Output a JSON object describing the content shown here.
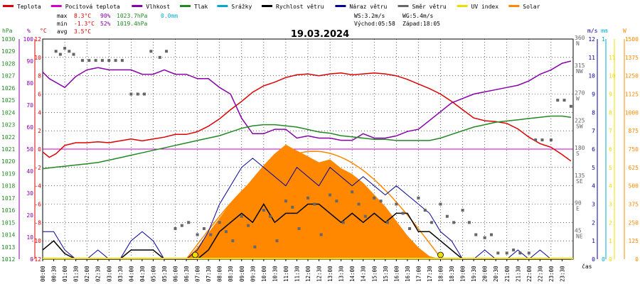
{
  "legend": [
    {
      "label": "Teplota",
      "color": "#dd0000"
    },
    {
      "label": "Pocitová teplota",
      "color": "#cc00cc"
    },
    {
      "label": "Vlhkost",
      "color": "#8800aa"
    },
    {
      "label": "Tlak",
      "color": "#228822"
    },
    {
      "label": "Srážky",
      "color": "#00aacc"
    },
    {
      "label": "Rychlost větru",
      "color": "#000000"
    },
    {
      "label": "Náraz větru",
      "color": "#000099"
    },
    {
      "label": "Směr větru",
      "color": "#666666"
    },
    {
      "label": "UV index",
      "color": "#eedd00"
    },
    {
      "label": "Solar",
      "color": "#ff8800"
    }
  ],
  "stats": {
    "max_label": "max",
    "max_temp": "8.3°C",
    "max_hum": "90%",
    "max_press": "1023.7hPa",
    "max_rain": "0.0mm",
    "min_label": "min",
    "min_temp": "-1.3°C",
    "min_hum": "52%",
    "min_press": "1019.4hPa",
    "avg_label": "avg",
    "avg_temp": "3.5°C"
  },
  "wind_info": {
    "ws": "WS:3.2m/s",
    "wg": "WG:5.4m/s",
    "sunrise": "Východ:05:58",
    "sunset": "Západ:18:05"
  },
  "colors": {
    "temp": "#dd0000",
    "feels": "#cc00cc",
    "hum": "#8800aa",
    "press": "#228822",
    "rain": "#00aacc",
    "wind": "#000000",
    "gust": "#000099",
    "dir": "#666666",
    "uv": "#eedd00",
    "solar": "#ff8800",
    "frame": "#000000",
    "grid": "#000000",
    "zero": "#cc00cc"
  },
  "chart_data": {
    "type": "line",
    "title": "19.03.2024",
    "x_unit_label": "čas",
    "x_ticks": [
      "00:00",
      "00:30",
      "01:00",
      "01:30",
      "02:00",
      "02:30",
      "03:00",
      "03:30",
      "04:00",
      "04:30",
      "05:00",
      "05:30",
      "06:00",
      "06:30",
      "07:00",
      "07:30",
      "08:00",
      "08:30",
      "09:00",
      "09:30",
      "10:00",
      "10:30",
      "11:00",
      "11:30",
      "12:00",
      "12:30",
      "13:00",
      "13:30",
      "14:00",
      "14:30",
      "15:00",
      "15:30",
      "16:00",
      "16:30",
      "17:00",
      "17:30",
      "18:00",
      "18:30",
      "19:00",
      "19:30",
      "20:00",
      "20:30",
      "21:00",
      "21:30",
      "22:00",
      "22:30",
      "23:00",
      "23:30"
    ],
    "axes": {
      "press": {
        "unit": "hPa",
        "ylim": [
          1012,
          1030
        ],
        "ticks": [
          "1012",
          "1013",
          "1014",
          "1015",
          "1016",
          "1017",
          "1018",
          "1019",
          "1020",
          "1021",
          "1022",
          "1023",
          "1024",
          "1025",
          "1026",
          "1027",
          "1028",
          "1029",
          "1030"
        ]
      },
      "hum": {
        "unit": "%",
        "ylim": [
          0,
          100
        ],
        "ticks": [
          "0",
          "10",
          "20",
          "30",
          "40",
          "50",
          "60",
          "70",
          "80",
          "90",
          "100"
        ]
      },
      "temp": {
        "unit": "°C",
        "ylim": [
          -12,
          12
        ],
        "ticks": [
          "12",
          "10",
          "8",
          "6",
          "4",
          "2",
          "0",
          "-2",
          "-4",
          "-6",
          "-8",
          "-10",
          "-12"
        ]
      },
      "dir": {
        "unit": "",
        "ylim": [
          0,
          360
        ],
        "ticks": [
          {
            "v": 360,
            "deg": "360",
            "dir": "N"
          },
          {
            "v": 315,
            "deg": "315",
            "dir": "NW"
          },
          {
            "v": 270,
            "deg": "270",
            "dir": "W"
          },
          {
            "v": 225,
            "deg": "225",
            "dir": "SW"
          },
          {
            "v": 180,
            "deg": "180",
            "dir": "S"
          },
          {
            "v": 135,
            "deg": "135",
            "dir": "SE"
          },
          {
            "v": 90,
            "deg": "90",
            "dir": "E"
          },
          {
            "v": 45,
            "deg": "45",
            "dir": "NE"
          }
        ]
      },
      "wind": {
        "unit": "m/s",
        "ylim": [
          0,
          12
        ],
        "ticks": [
          "0",
          "1",
          "2",
          "3",
          "4",
          "5",
          "6",
          "7",
          "8",
          "9",
          "10",
          "11",
          "12"
        ]
      },
      "rain": {
        "unit": "mm",
        "ylim": [
          0,
          1
        ],
        "ticks": [
          "0",
          "1"
        ]
      },
      "uv": {
        "unit": "",
        "ylim": [
          0,
          12
        ],
        "ticks": [
          "0",
          "1",
          "2",
          "3",
          "4",
          "5",
          "6",
          "7",
          "8",
          "9",
          "10",
          "11"
        ]
      },
      "solar": {
        "unit": "W",
        "ylim": [
          0,
          1500
        ],
        "ticks": [
          "0",
          "125",
          "250",
          "375",
          "500",
          "625",
          "750",
          "875",
          "1000",
          "1125",
          "1250",
          "1375",
          "1500"
        ]
      }
    },
    "series": [
      {
        "name": "Teplota",
        "axis": "temp",
        "key": "temp",
        "x": [
          0,
          0.3,
          0.6,
          1,
          1.5,
          2,
          2.5,
          3,
          3.5,
          4,
          4.5,
          5,
          5.5,
          6,
          6.5,
          7,
          7.5,
          8,
          8.5,
          9,
          9.5,
          10,
          10.5,
          11,
          11.5,
          12,
          12.5,
          13,
          13.5,
          14,
          14.5,
          15,
          15.5,
          16,
          16.5,
          17,
          17.5,
          18,
          18.5,
          19,
          19.5,
          20,
          20.5,
          21,
          21.5,
          22,
          22.5,
          23,
          23.5,
          23.9
        ],
        "y": [
          -0.3,
          -0.9,
          -0.5,
          0.4,
          0.7,
          0.7,
          0.8,
          0.7,
          0.9,
          1.1,
          0.9,
          1.1,
          1.3,
          1.6,
          1.6,
          1.9,
          2.5,
          3.3,
          4.3,
          5.2,
          6.2,
          6.9,
          7.3,
          7.8,
          8.1,
          8.2,
          8.0,
          8.2,
          8.3,
          8.1,
          8.2,
          8.3,
          8.2,
          8.0,
          7.6,
          7.1,
          6.6,
          6.0,
          5.2,
          4.3,
          3.4,
          3.1,
          3.0,
          2.8,
          2.2,
          1.3,
          0.6,
          0.2,
          -0.6,
          -1.3
        ]
      },
      {
        "name": "Vlhkost",
        "axis": "hum",
        "key": "hum",
        "x": [
          0,
          0.3,
          1,
          1.5,
          2,
          2.5,
          3,
          3.5,
          4,
          4.5,
          5,
          5.5,
          6,
          6.5,
          7,
          7.5,
          8,
          8.5,
          9,
          9.5,
          10,
          10.5,
          11,
          11.5,
          12,
          12.5,
          13,
          13.5,
          14,
          14.5,
          15,
          15.5,
          16,
          16.5,
          17,
          17.5,
          18,
          18.5,
          19,
          19.5,
          20,
          20.5,
          21,
          21.5,
          22,
          22.5,
          23,
          23.5,
          23.9
        ],
        "y": [
          85,
          82,
          78,
          83,
          86,
          87,
          86,
          86,
          86,
          84,
          84,
          86,
          84,
          84,
          82,
          82,
          78,
          75,
          64,
          57,
          57,
          59,
          59,
          55,
          56,
          55,
          55,
          54,
          54,
          57,
          55,
          55,
          56,
          58,
          59,
          63,
          67,
          71,
          73,
          75,
          76,
          77,
          78,
          79,
          81,
          84,
          86,
          89,
          90
        ]
      },
      {
        "name": "Tlak",
        "axis": "press",
        "key": "press",
        "x": [
          0,
          0.5,
          1,
          1.5,
          2,
          2.5,
          3,
          3.5,
          4,
          4.5,
          5,
          5.5,
          6,
          6.5,
          7,
          7.5,
          8,
          8.5,
          9,
          9.5,
          10,
          10.5,
          11,
          11.5,
          12,
          12.5,
          13,
          13.5,
          14,
          14.5,
          15,
          15.5,
          16,
          16.5,
          17,
          17.5,
          18,
          18.5,
          19,
          19.5,
          20,
          20.5,
          21,
          21.5,
          22,
          22.5,
          23,
          23.5,
          23.9
        ],
        "y": [
          1019.4,
          1019.5,
          1019.6,
          1019.7,
          1019.8,
          1019.9,
          1020.1,
          1020.3,
          1020.5,
          1020.7,
          1020.9,
          1021.1,
          1021.3,
          1021.5,
          1021.7,
          1021.9,
          1022.1,
          1022.4,
          1022.7,
          1022.9,
          1023.0,
          1023.0,
          1022.9,
          1022.8,
          1022.6,
          1022.4,
          1022.3,
          1022.1,
          1022.0,
          1021.9,
          1021.8,
          1021.8,
          1021.7,
          1021.7,
          1021.7,
          1021.7,
          1021.9,
          1022.2,
          1022.5,
          1022.8,
          1023.0,
          1023.2,
          1023.3,
          1023.4,
          1023.5,
          1023.6,
          1023.7,
          1023.7,
          1023.6
        ]
      },
      {
        "name": "Rychlost větru",
        "axis": "wind",
        "key": "wind",
        "x": [
          0,
          0.5,
          1,
          1.5,
          2,
          2.5,
          3,
          3.5,
          4,
          4.5,
          5,
          5.5,
          6,
          6.5,
          7,
          7.5,
          8,
          8.5,
          9,
          9.5,
          10,
          10.5,
          11,
          11.5,
          12,
          12.5,
          13,
          13.5,
          14,
          14.5,
          15,
          15.5,
          16,
          16.5,
          17,
          17.5,
          18,
          18.5,
          19,
          19.5,
          20,
          20.5,
          21,
          21.5,
          22,
          22.5,
          23,
          23.5,
          23.9
        ],
        "y": [
          0.5,
          1.0,
          0.3,
          0,
          0,
          0,
          0,
          0,
          0.5,
          0.5,
          0.5,
          0,
          0,
          0,
          0,
          0.5,
          1.5,
          2.0,
          2.5,
          2.0,
          3.0,
          2.0,
          2.5,
          2.5,
          3.0,
          3.0,
          2.5,
          2.0,
          2.5,
          2.0,
          2.5,
          2.0,
          2.5,
          2.5,
          1.5,
          1.5,
          1.0,
          0.5,
          0,
          0,
          0,
          0,
          0,
          0,
          0,
          0,
          0,
          0,
          0
        ]
      },
      {
        "name": "Náraz větru",
        "axis": "wind",
        "key": "gust",
        "x": [
          0,
          0.5,
          1,
          1.5,
          2,
          2.5,
          3,
          3.5,
          4,
          4.5,
          5,
          5.5,
          6,
          6.5,
          7,
          7.5,
          8,
          8.5,
          9,
          9.5,
          10,
          10.5,
          11,
          11.5,
          12,
          12.5,
          13,
          13.5,
          14,
          14.5,
          15,
          15.5,
          16,
          16.5,
          17,
          17.5,
          18,
          18.5,
          19,
          19.5,
          20,
          20.5,
          21,
          21.5,
          22,
          22.5,
          23,
          23.5,
          23.9
        ],
        "y": [
          1.5,
          1.5,
          0.5,
          0,
          0,
          0.5,
          0,
          0,
          1.0,
          1.5,
          1.0,
          0,
          0,
          0,
          0.5,
          1.5,
          3.0,
          4.0,
          5.0,
          5.5,
          5.0,
          4.5,
          4.0,
          5.0,
          4.5,
          4.0,
          5.0,
          4.5,
          4.0,
          4.5,
          4.0,
          3.5,
          4.0,
          3.5,
          3.0,
          2.5,
          1.5,
          1.0,
          0,
          0,
          0.5,
          0,
          0,
          0.5,
          0,
          0.5,
          0,
          0,
          0
        ]
      },
      {
        "name": "Solar",
        "axis": "solar",
        "key": "solar",
        "x": [
          6.5,
          7,
          7.5,
          8,
          8.5,
          9,
          9.5,
          10,
          10.5,
          11,
          11.5,
          12,
          12.5,
          13,
          13.5,
          14,
          14.5,
          15,
          15.5,
          16,
          16.5,
          17,
          17.5,
          18.05
        ],
        "y": [
          0,
          80,
          180,
          280,
          380,
          460,
          550,
          640,
          720,
          780,
          740,
          700,
          660,
          680,
          620,
          580,
          520,
          440,
          360,
          260,
          160,
          80,
          20,
          0
        ]
      }
    ],
    "dir_points": {
      "x": [
        0.6,
        0.8,
        1.0,
        1.2,
        1.4,
        1.8,
        2.1,
        2.4,
        2.7,
        3.0,
        3.3,
        3.6,
        4.0,
        4.3,
        4.6,
        4.9,
        5.3,
        5.6,
        6.0,
        6.3,
        6.6,
        7.0,
        7.3,
        7.6,
        8.0,
        8.3,
        8.6,
        9.0,
        9.3,
        9.6,
        10.0,
        10.3,
        10.6,
        11.0,
        11.3,
        11.6,
        12.0,
        12.3,
        12.6,
        13.0,
        13.3,
        13.6,
        14.0,
        14.3,
        14.6,
        15.0,
        15.3,
        15.6,
        16.0,
        16.3,
        16.6,
        17.0,
        17.3,
        17.6,
        18.0,
        18.3,
        18.6,
        19.0,
        19.3,
        19.6,
        20.0,
        20.3,
        20.6,
        21.0,
        21.3,
        21.6,
        22.0,
        22.3,
        22.6,
        23.0,
        23.3,
        23.6,
        23.9
      ],
      "y": [
        340,
        335,
        345,
        340,
        335,
        325,
        325,
        325,
        325,
        325,
        325,
        325,
        270,
        270,
        270,
        340,
        330,
        340,
        50,
        55,
        60,
        40,
        50,
        40,
        60,
        45,
        30,
        70,
        55,
        20,
        80,
        70,
        30,
        95,
        85,
        50,
        100,
        90,
        40,
        105,
        95,
        60,
        110,
        90,
        70,
        100,
        95,
        60,
        90,
        75,
        50,
        100,
        80,
        60,
        90,
        70,
        60,
        80,
        60,
        40,
        35,
        40,
        10,
        10,
        15,
        10,
        10,
        195,
        195,
        195,
        260,
        260,
        250
      ]
    },
    "uv_points": {
      "x": [
        6.9,
        18.0
      ],
      "y": [
        0,
        0
      ]
    }
  }
}
